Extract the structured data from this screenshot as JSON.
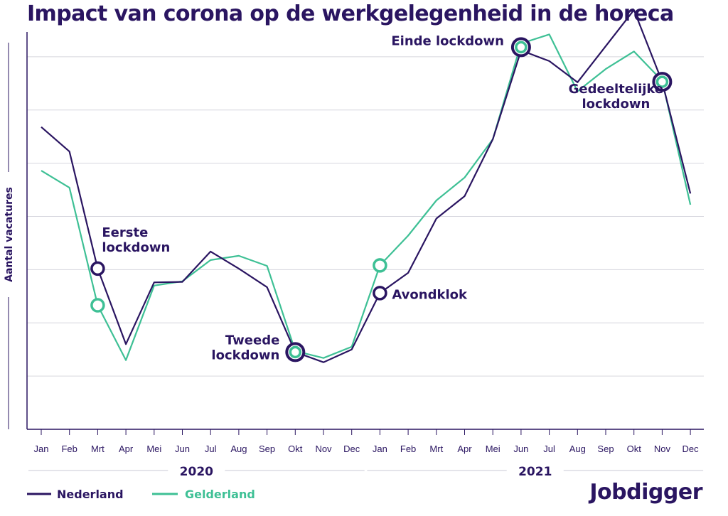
{
  "title": "Impact van corona op de werkgelegenheid in de horeca",
  "brand": "Jobdigger",
  "colors": {
    "nederland": "#2a1561",
    "gelderland": "#3ec095",
    "grid": "#d6d6de",
    "text": "#2a1561"
  },
  "chart_data": {
    "type": "line",
    "title": "Impact van corona op de werkgelegenheid in de horeca",
    "xlabel": "",
    "ylabel": "Aantal vacatures",
    "x": [
      "Jan",
      "Feb",
      "Mrt",
      "Apr",
      "Mei",
      "Jun",
      "Jul",
      "Aug",
      "Sep",
      "Okt",
      "Nov",
      "Dec",
      "Jan",
      "Feb",
      "Mrt",
      "Apr",
      "Mei",
      "Jun",
      "Jul",
      "Aug",
      "Sep",
      "Okt",
      "Nov",
      "Dec"
    ],
    "year_groups": [
      {
        "label": "2020",
        "start": 0,
        "end": 11
      },
      {
        "label": "2021",
        "start": 12,
        "end": 23
      }
    ],
    "ylim": [
      0,
      8
    ],
    "grid": true,
    "legend_position": "bottom-left",
    "series": [
      {
        "name": "Nederland",
        "color": "#2a1561",
        "values": [
          5.68,
          5.22,
          3.02,
          1.6,
          2.76,
          2.77,
          3.34,
          3.02,
          2.67,
          1.45,
          1.26,
          1.5,
          2.56,
          2.94,
          3.96,
          4.38,
          5.45,
          7.12,
          6.92,
          6.52,
          7.2,
          7.88,
          6.53,
          4.43
        ]
      },
      {
        "name": "Gelderland",
        "color": "#3ec095",
        "values": [
          4.86,
          4.54,
          2.33,
          1.3,
          2.7,
          2.78,
          3.18,
          3.26,
          3.07,
          1.47,
          1.34,
          1.55,
          3.08,
          3.64,
          4.3,
          4.73,
          5.45,
          7.25,
          7.42,
          6.35,
          6.77,
          7.1,
          6.55,
          4.22
        ]
      }
    ],
    "annotations": [
      {
        "lines": [
          "Eerste",
          "lockdown"
        ],
        "index": 2,
        "markers": [
          {
            "series": "Nederland",
            "value": 3.02
          },
          {
            "series": "Gelderland",
            "value": 2.33
          }
        ]
      },
      {
        "lines": [
          "Tweede",
          "lockdown"
        ],
        "index": 9,
        "markers": [
          {
            "series": "both",
            "value": 1.45
          }
        ]
      },
      {
        "lines": [
          "Avondklok"
        ],
        "index": 12,
        "markers": [
          {
            "series": "Nederland",
            "value": 2.56
          },
          {
            "series": "Gelderland",
            "value": 3.08
          }
        ]
      },
      {
        "lines": [
          "Einde lockdown"
        ],
        "index": 17,
        "markers": [
          {
            "series": "both",
            "value": 7.18
          }
        ]
      },
      {
        "lines": [
          "Gedeeltelijke",
          "lockdown"
        ],
        "index": 22,
        "markers": [
          {
            "series": "both",
            "value": 6.53
          }
        ]
      }
    ]
  }
}
